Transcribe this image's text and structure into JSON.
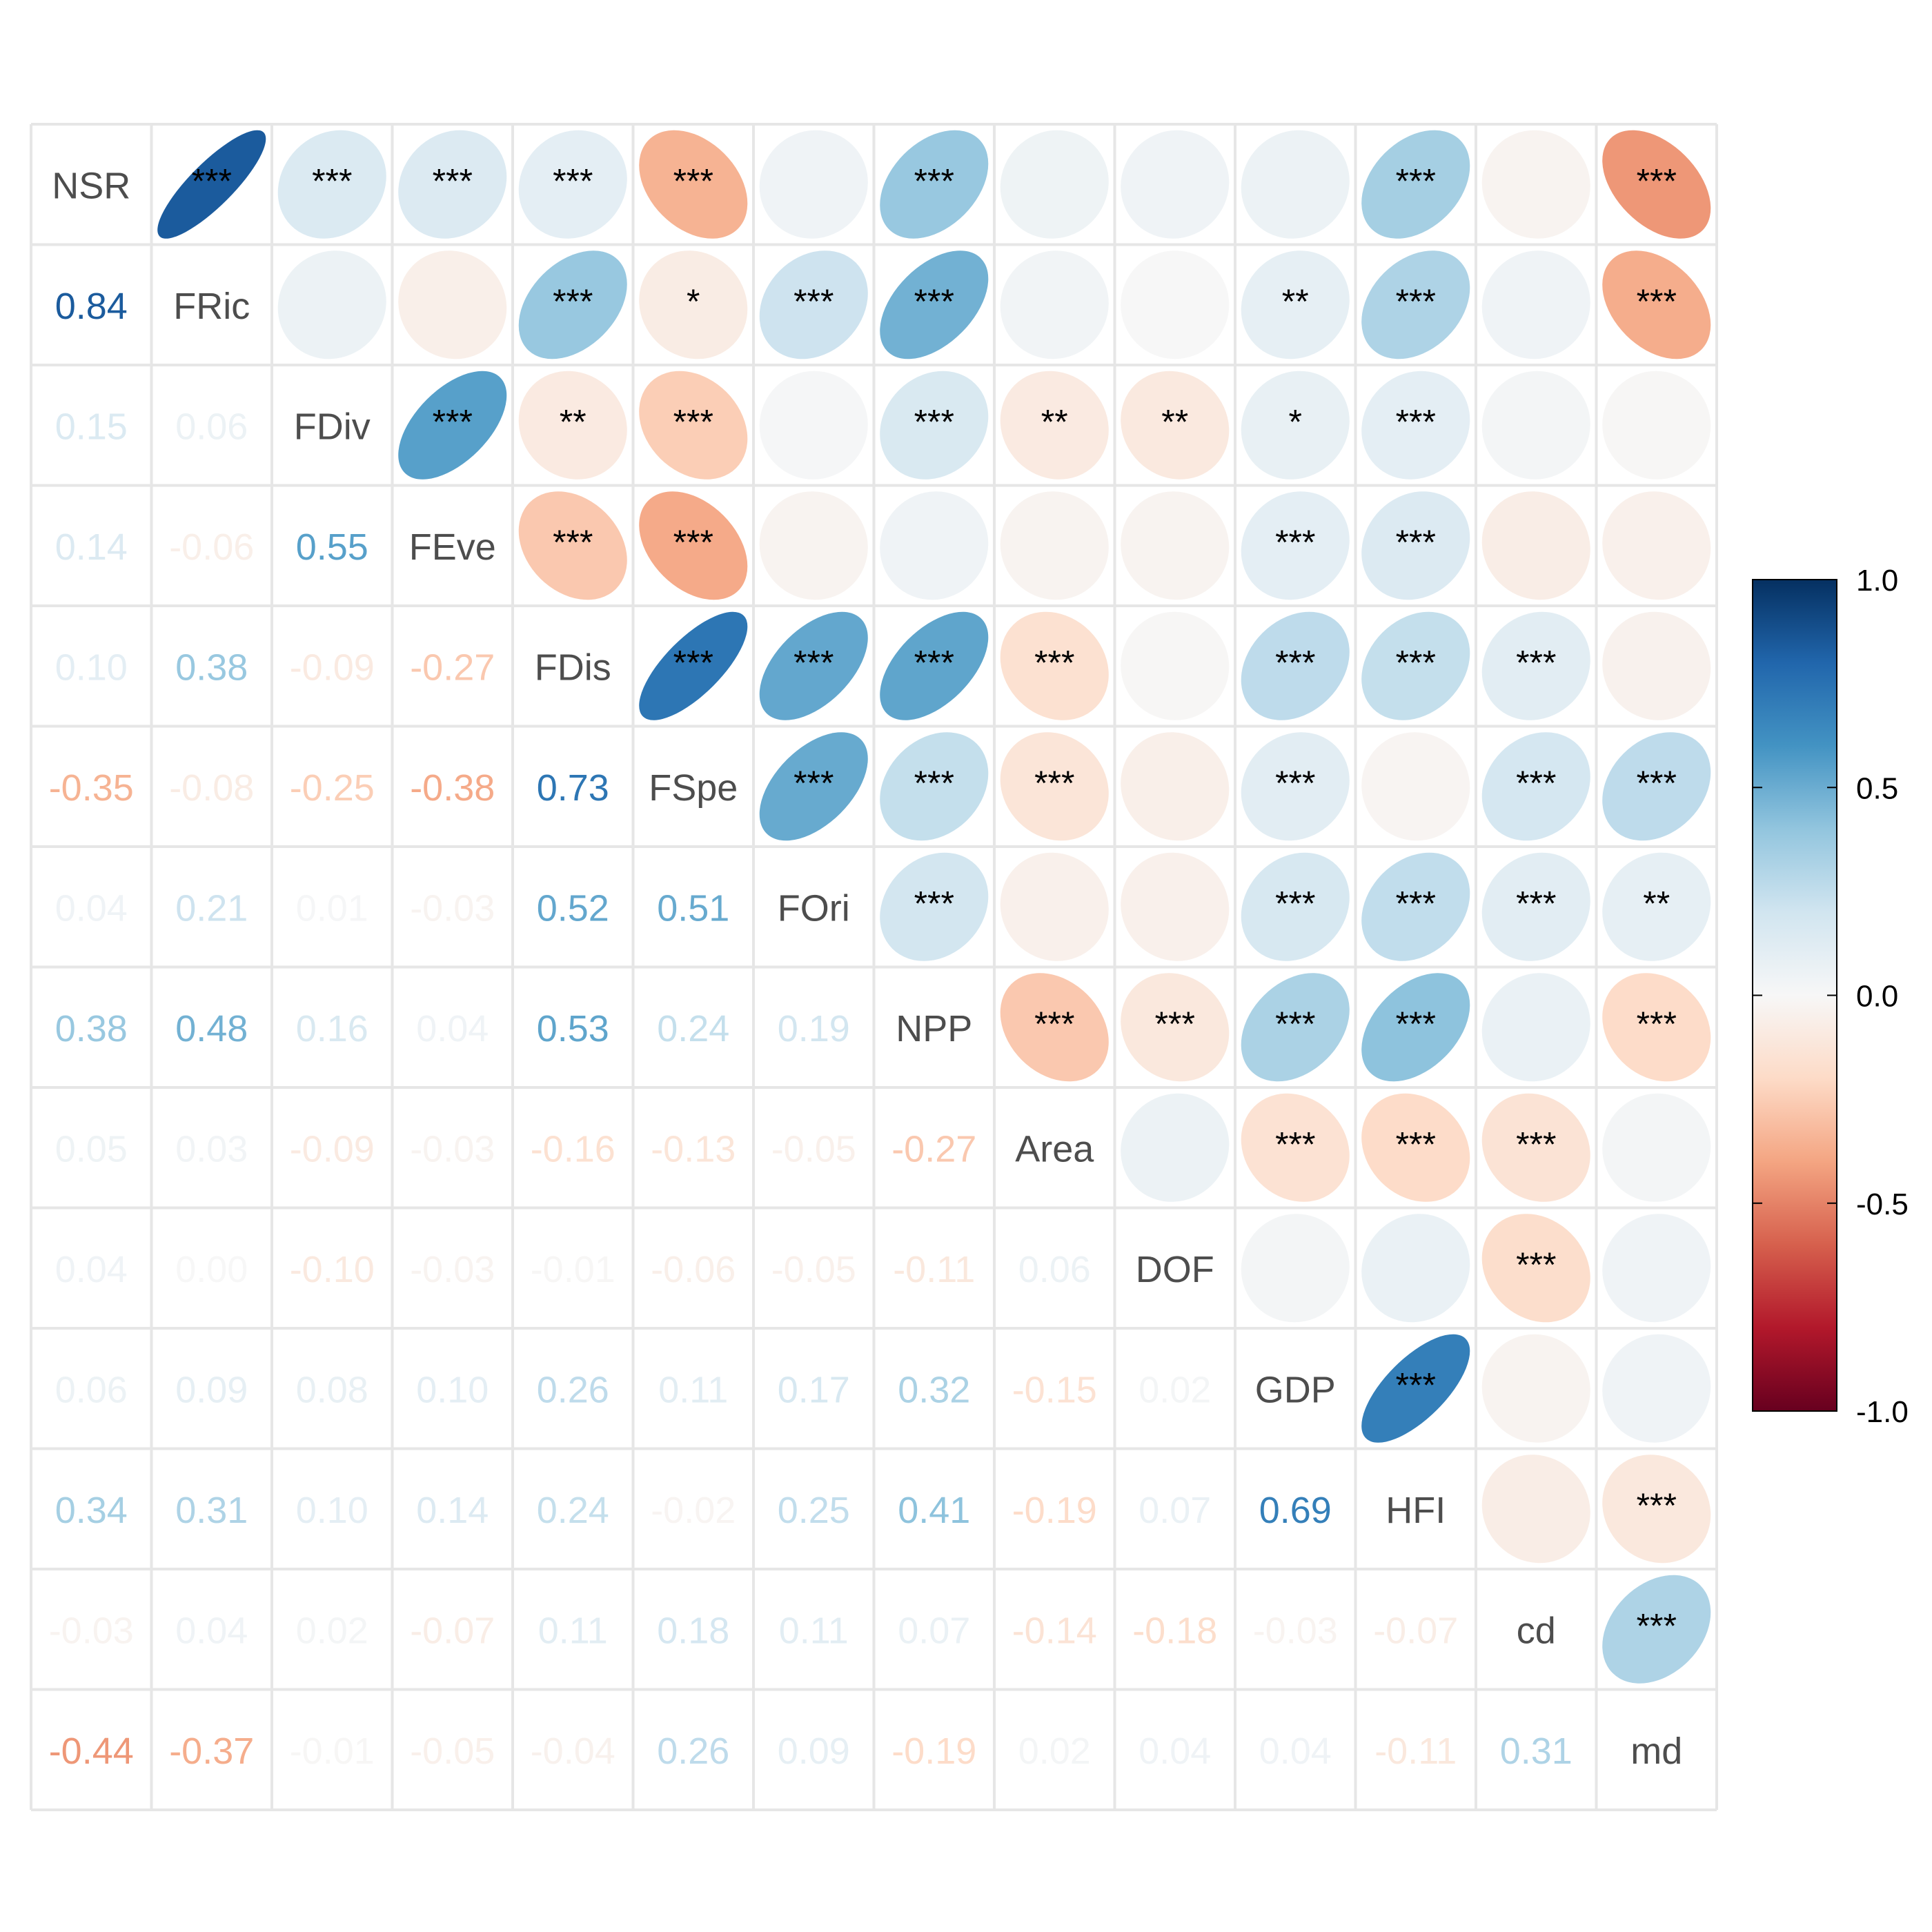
{
  "chart_data": {
    "type": "heatmap",
    "variables": [
      "NSR",
      "FRic",
      "FDiv",
      "FEve",
      "FDis",
      "FSpe",
      "FOri",
      "NPP",
      "Area",
      "DOF",
      "GDP",
      "HFI",
      "cd",
      "md"
    ],
    "lower_labels": [
      [],
      [
        "0.84"
      ],
      [
        "0.15",
        "0.06"
      ],
      [
        "0.14",
        "-0.06",
        "0.55"
      ],
      [
        "0.10",
        "0.38",
        "-0.09",
        "-0.27"
      ],
      [
        "-0.35",
        "-0.08",
        "-0.25",
        "-0.38",
        "0.73"
      ],
      [
        "0.04",
        "0.21",
        "0.01",
        "-0.03",
        "0.52",
        "0.51"
      ],
      [
        "0.38",
        "0.48",
        "0.16",
        "0.04",
        "0.53",
        "0.24",
        "0.19"
      ],
      [
        "0.05",
        "0.03",
        "-0.09",
        "-0.03",
        "-0.16",
        "-0.13",
        "-0.05",
        "-0.27"
      ],
      [
        "0.04",
        "0.00",
        "-0.10",
        "-0.03",
        "-0.01",
        "-0.06",
        "-0.05",
        "-0.11",
        "0.06"
      ],
      [
        "0.06",
        "0.09",
        "0.08",
        "0.10",
        "0.26",
        "0.11",
        "0.17",
        "0.32",
        "-0.15",
        "0.02"
      ],
      [
        "0.34",
        "0.31",
        "0.10",
        "0.14",
        "0.24",
        "-0.02",
        "0.25",
        "0.41",
        "-0.19",
        "0.07",
        "0.69"
      ],
      [
        "-0.03",
        "0.04",
        "0.02",
        "-0.07",
        "0.11",
        "0.18",
        "0.11",
        "0.07",
        "-0.14",
        "-0.18",
        "-0.03",
        "-0.07"
      ],
      [
        "-0.44",
        "-0.37",
        "-0.01",
        "-0.05",
        "-0.04",
        "0.26",
        "0.09",
        "-0.19",
        "0.02",
        "0.04",
        "0.04",
        "-0.11",
        "0.31"
      ]
    ],
    "significance": [
      [
        "",
        "***",
        "***",
        "***",
        "***",
        "***",
        "",
        "***",
        "",
        "",
        "",
        "***",
        "",
        "***"
      ],
      [
        "",
        "",
        "",
        "",
        "***",
        "*",
        "***",
        "***",
        "",
        "",
        "**",
        "***",
        "",
        "***"
      ],
      [
        "",
        "",
        "",
        "***",
        "**",
        "***",
        "",
        "***",
        "**",
        "**",
        "*",
        "***",
        "",
        ""
      ],
      [
        "",
        "",
        "",
        "",
        "***",
        "***",
        "",
        "",
        "",
        "",
        "***",
        "***",
        "",
        ""
      ],
      [
        "",
        "",
        "",
        "",
        "",
        "***",
        "***",
        "***",
        "***",
        "",
        "***",
        "***",
        "***",
        ""
      ],
      [
        "",
        "",
        "",
        "",
        "",
        "",
        "***",
        "***",
        "***",
        "",
        "***",
        "",
        "***",
        "***"
      ],
      [
        "",
        "",
        "",
        "",
        "",
        "",
        "",
        "***",
        "",
        "",
        "***",
        "***",
        "***",
        "**"
      ],
      [
        "",
        "",
        "",
        "",
        "",
        "",
        "",
        "",
        "***",
        "***",
        "***",
        "***",
        "",
        "***"
      ],
      [
        "",
        "",
        "",
        "",
        "",
        "",
        "",
        "",
        "",
        "",
        "***",
        "***",
        "***",
        ""
      ],
      [
        "",
        "",
        "",
        "",
        "",
        "",
        "",
        "",
        "",
        "",
        "",
        "",
        "***",
        ""
      ],
      [
        "",
        "",
        "",
        "",
        "",
        "",
        "",
        "",
        "",
        "",
        "",
        "***",
        "",
        ""
      ],
      [
        "",
        "",
        "",
        "",
        "",
        "",
        "",
        "",
        "",
        "",
        "",
        "",
        "",
        "***"
      ],
      [
        "",
        "",
        "",
        "",
        "",
        "",
        "",
        "",
        "",
        "",
        "",
        "",
        "",
        "***"
      ],
      [
        "",
        "",
        "",
        "",
        "",
        "",
        "",
        "",
        "",
        "",
        "",
        "",
        "",
        ""
      ]
    ],
    "colorbar": {
      "range": [
        -1,
        1
      ],
      "ticks": [
        "1.0",
        "0.5",
        "0.0",
        "-0.5",
        "-1.0"
      ],
      "colors": [
        "#67001f",
        "#b2182b",
        "#d6604d",
        "#f4a582",
        "#fddbc7",
        "#f7f7f7",
        "#d1e5f0",
        "#92c5de",
        "#4393c3",
        "#2166ac",
        "#053061"
      ]
    }
  }
}
